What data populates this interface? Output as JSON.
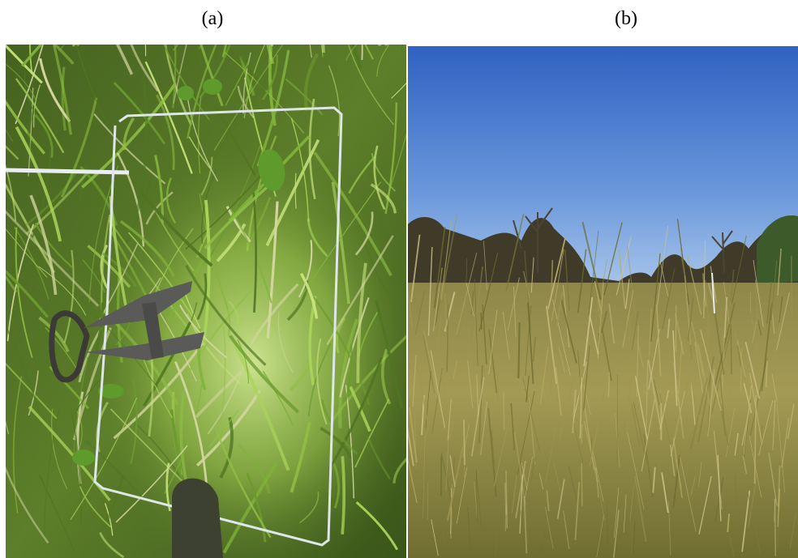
{
  "panels": [
    {
      "label": "(a)"
    },
    {
      "label": "(b)"
    }
  ],
  "colors": {
    "grass_dark": "#3f5a1d",
    "grass_light": "#9ac94a",
    "sky_top": "#2f62c2",
    "sky_bottom": "#a9c6ea",
    "meadow": "#9a8f4a",
    "tree_dark": "#3a3524"
  }
}
